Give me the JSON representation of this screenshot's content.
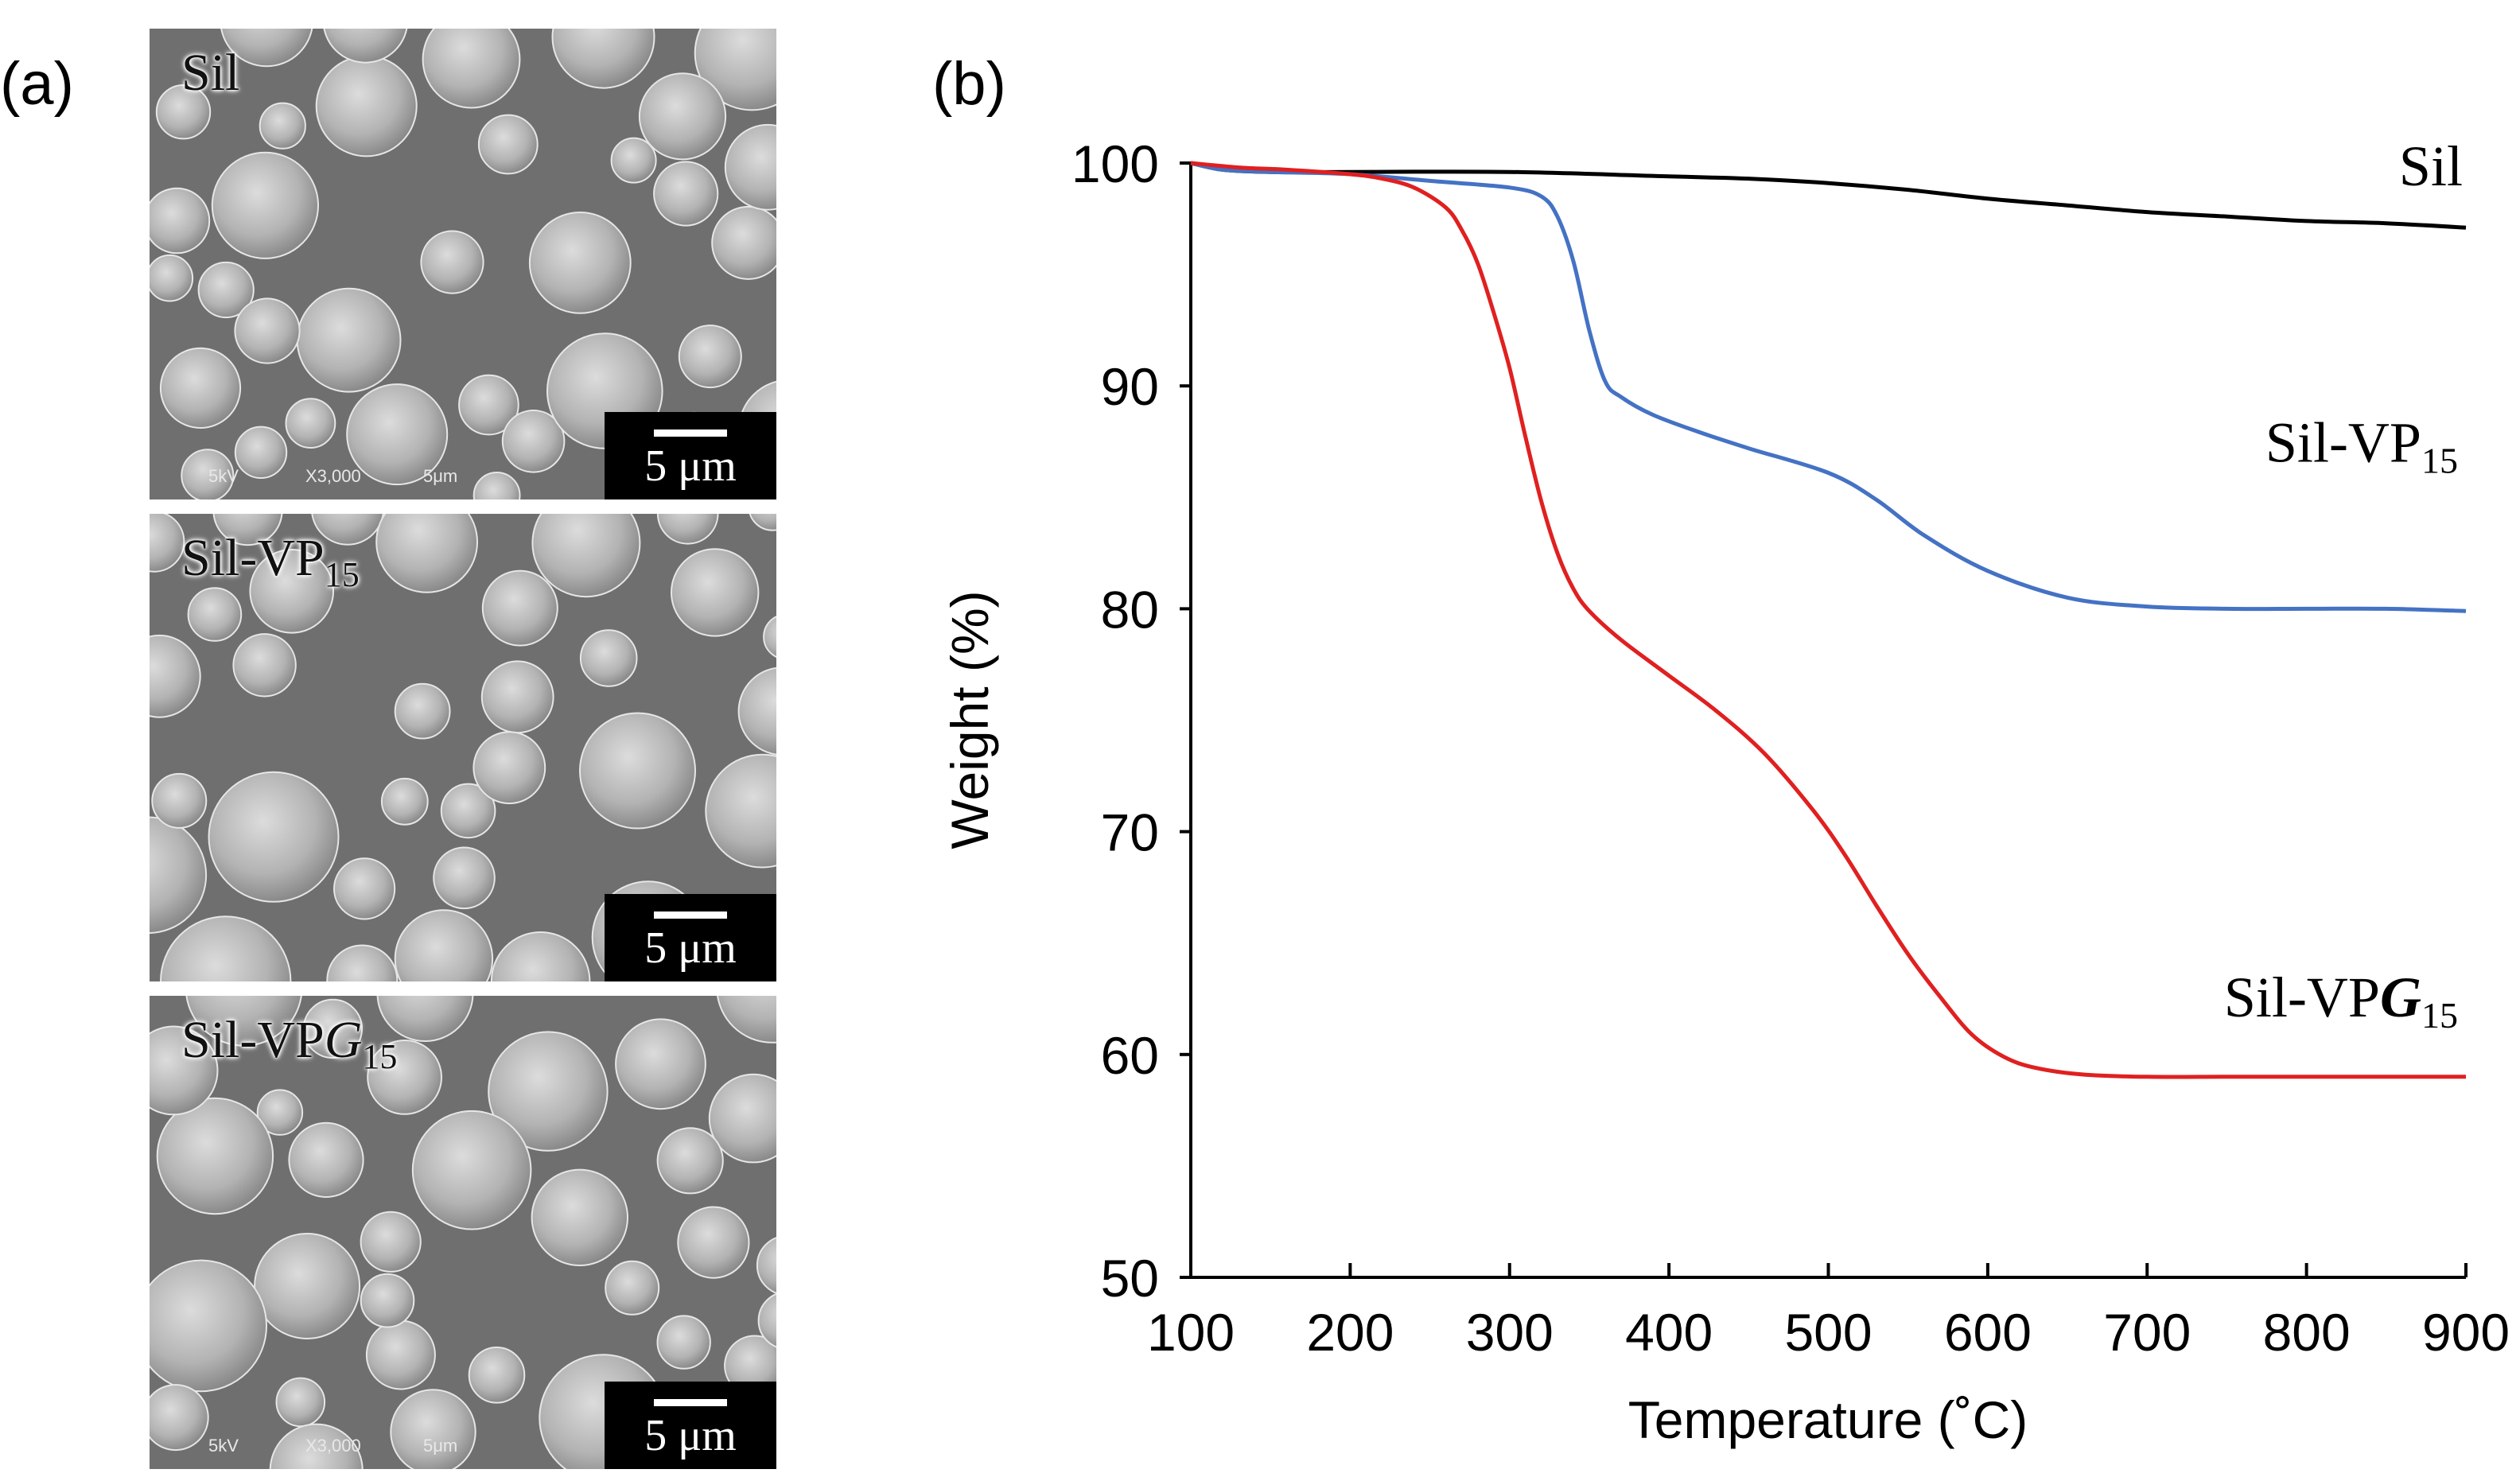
{
  "panel_a": {
    "label": "(a)",
    "images": [
      {
        "id": "sil",
        "name": "Sil",
        "sub": "",
        "italic": "",
        "scale": "5 μm",
        "meta_left": "5kV",
        "meta_mid": "X3,000",
        "meta_right": "5μm"
      },
      {
        "id": "vp",
        "name": "Sil-VP",
        "sub": "15",
        "italic": "",
        "scale": "5 μm",
        "meta_left": "",
        "meta_mid": "",
        "meta_right": ""
      },
      {
        "id": "vpg",
        "name": "Sil-VP",
        "sub": "15",
        "italic": "G",
        "scale": "5 μm",
        "meta_left": "5kV",
        "meta_mid": "X3,000",
        "meta_right": "5μm"
      }
    ]
  },
  "panel_b": {
    "label": "(b)"
  },
  "chart_data": {
    "type": "line",
    "title": "",
    "xlabel": "Temperature (˚C)",
    "ylabel": "Weight (%)",
    "xlim": [
      100,
      900
    ],
    "ylim": [
      50,
      100
    ],
    "xticks": [
      100,
      200,
      300,
      400,
      500,
      600,
      700,
      800,
      900
    ],
    "yticks": [
      50,
      60,
      70,
      80,
      90,
      100
    ],
    "grid": false,
    "series": [
      {
        "name": "Sil",
        "name_sub": "",
        "name_italic": "",
        "color": "#000000",
        "x": [
          100,
          120,
          150,
          200,
          300,
          400,
          450,
          500,
          550,
          600,
          650,
          700,
          750,
          800,
          850,
          900
        ],
        "y": [
          100,
          99.7,
          99.6,
          99.6,
          99.6,
          99.4,
          99.3,
          99.1,
          98.8,
          98.4,
          98.1,
          97.8,
          97.6,
          97.4,
          97.3,
          97.1
        ]
      },
      {
        "name": "Sil-VP",
        "name_sub": "15",
        "name_italic": "",
        "color": "#4472c4",
        "x": [
          100,
          120,
          150,
          200,
          250,
          300,
          320,
          330,
          340,
          350,
          360,
          370,
          390,
          420,
          450,
          500,
          530,
          560,
          600,
          650,
          700,
          750,
          800,
          850,
          900
        ],
        "y": [
          100,
          99.7,
          99.6,
          99.5,
          99.2,
          98.9,
          98.5,
          97.6,
          95.6,
          92.5,
          90.2,
          89.5,
          88.7,
          87.9,
          87.2,
          86.1,
          84.9,
          83.3,
          81.7,
          80.5,
          80.1,
          80.0,
          80.0,
          80.0,
          79.9
        ]
      },
      {
        "name": "Sil-VP",
        "name_sub": "15",
        "name_italic": "G",
        "color": "#e02020",
        "x": [
          100,
          130,
          160,
          200,
          220,
          240,
          260,
          270,
          280,
          290,
          300,
          310,
          320,
          330,
          340,
          350,
          370,
          400,
          430,
          460,
          490,
          510,
          530,
          550,
          570,
          590,
          610,
          630,
          660,
          700,
          750,
          800,
          850,
          900
        ],
        "y": [
          100,
          99.8,
          99.7,
          99.5,
          99.3,
          98.9,
          98.0,
          97.0,
          95.5,
          93.3,
          90.8,
          87.7,
          84.8,
          82.5,
          80.9,
          79.9,
          78.6,
          77.0,
          75.4,
          73.5,
          71.0,
          69.0,
          66.7,
          64.5,
          62.6,
          60.9,
          59.9,
          59.4,
          59.1,
          59.0,
          59.0,
          59.0,
          59.0,
          59.0
        ]
      }
    ]
  }
}
